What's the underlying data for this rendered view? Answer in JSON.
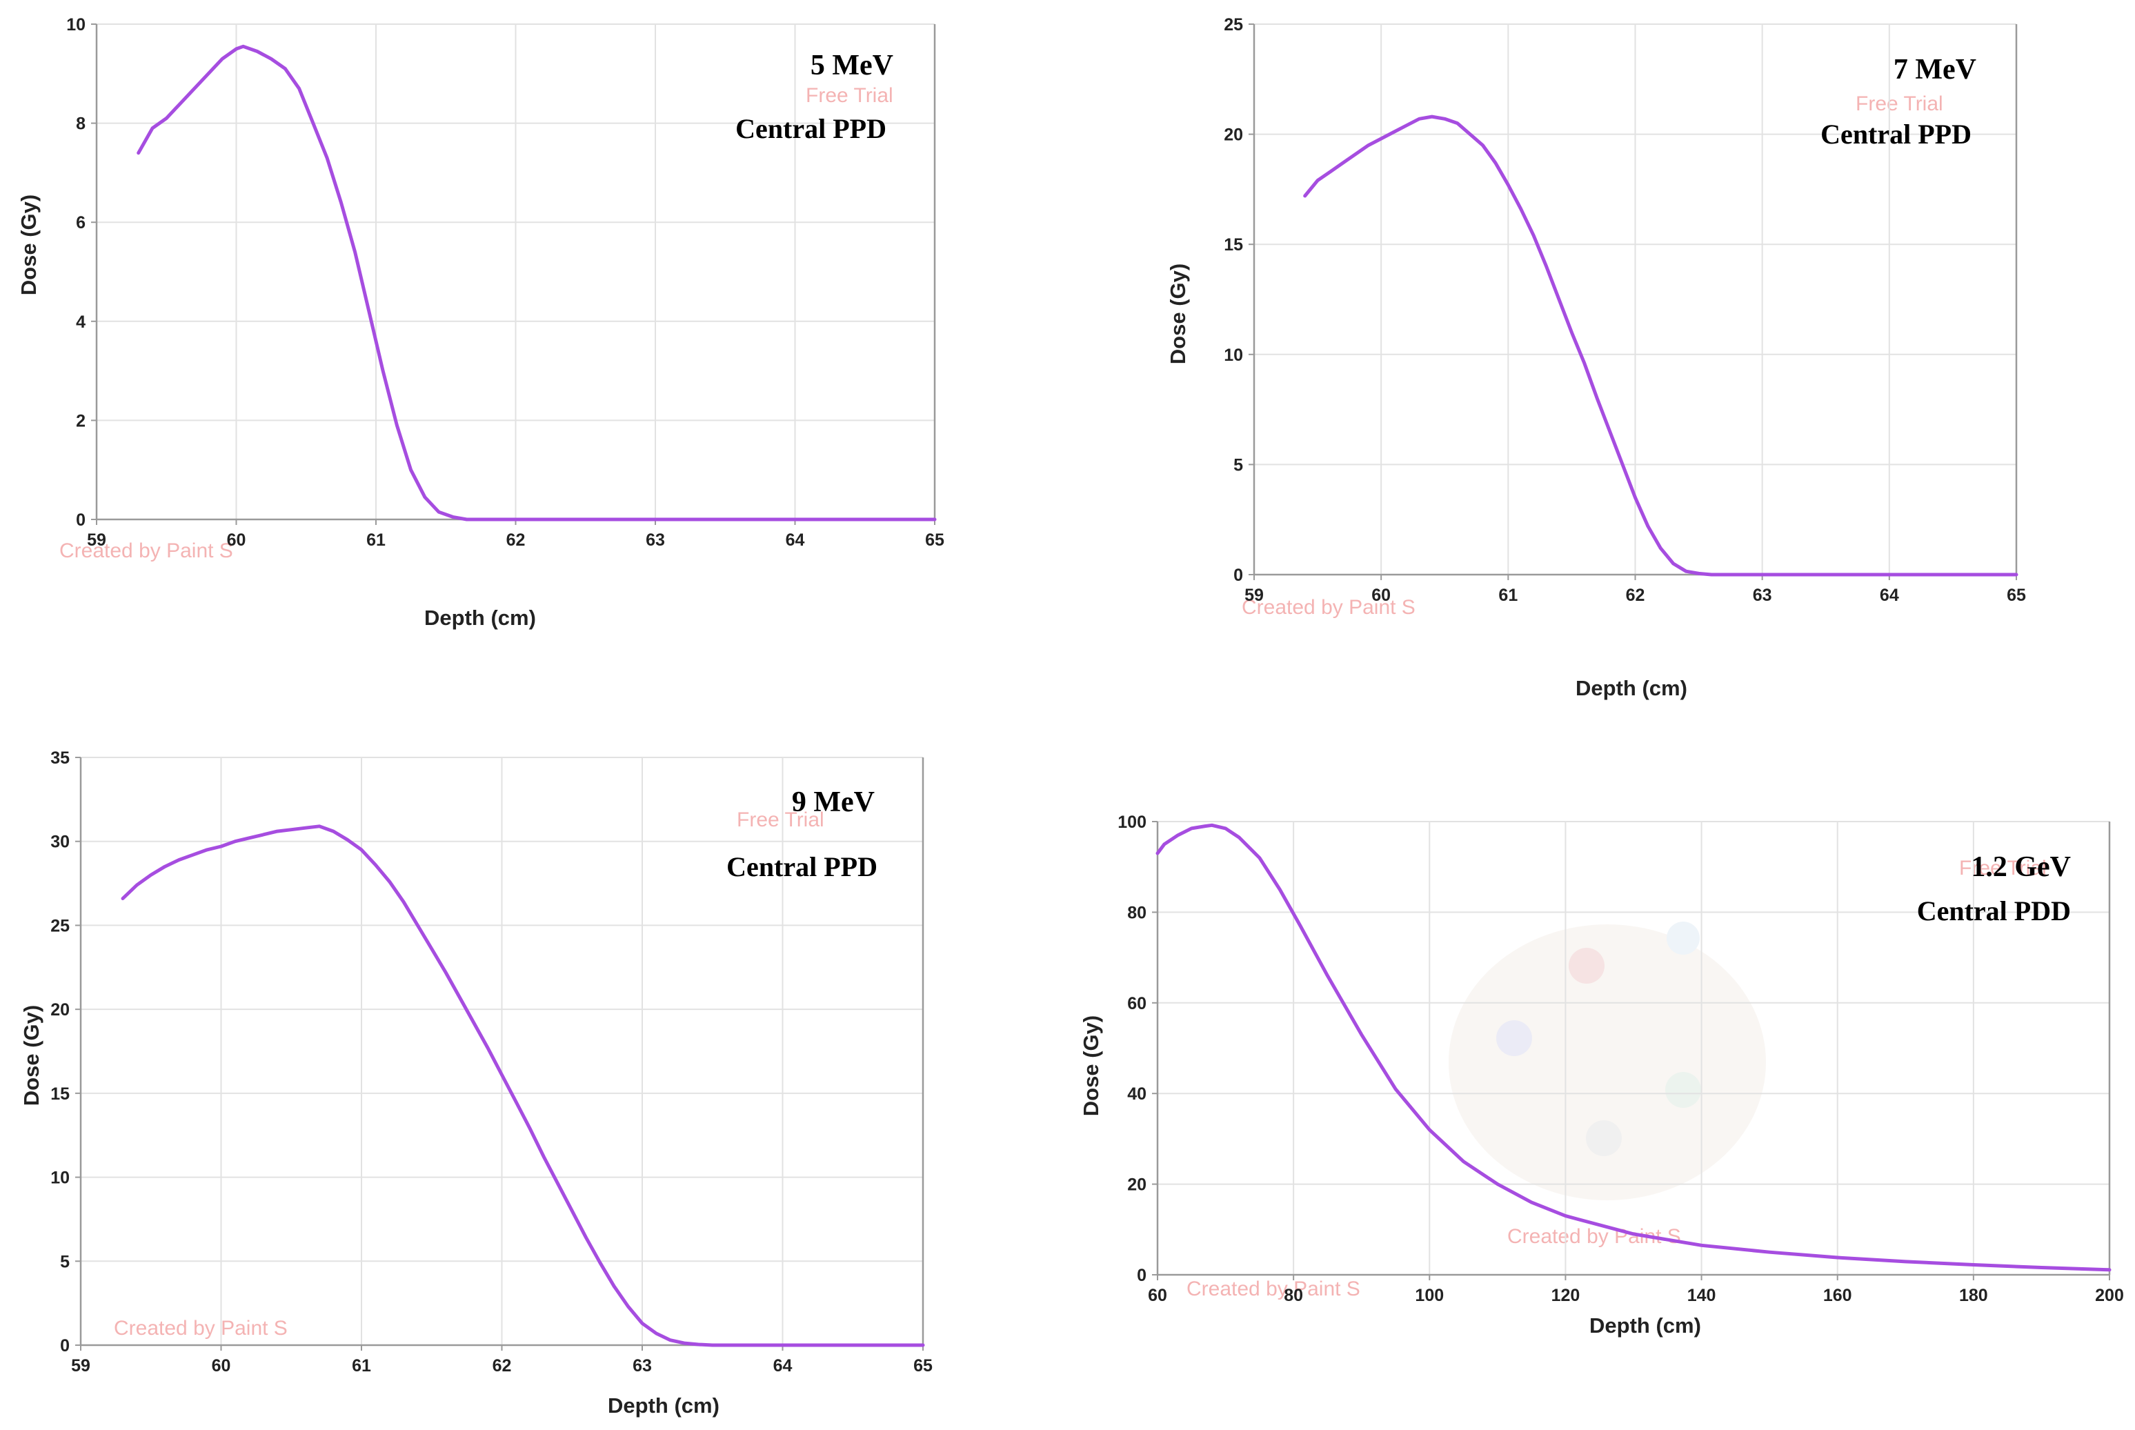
{
  "curve_color": "#a64de0",
  "watermarks": {
    "free_trial": "Free Trial",
    "created_by": "Created by Paint S",
    "created_by_short": "Created by Paint S"
  },
  "chart_data": [
    {
      "type": "line",
      "title": "5 MeV",
      "subtitle": "Central  PPD",
      "xlabel": "Depth (cm)",
      "ylabel": "Dose (Gy)",
      "xlim": [
        59,
        65
      ],
      "ylim": [
        0,
        10
      ],
      "xticks": [
        59,
        60,
        61,
        62,
        63,
        64,
        65
      ],
      "yticks": [
        0,
        2,
        4,
        6,
        8,
        10
      ],
      "x": [
        59.3,
        59.4,
        59.5,
        59.6,
        59.7,
        59.8,
        59.9,
        60.0,
        60.05,
        60.15,
        60.25,
        60.35,
        60.45,
        60.55,
        60.65,
        60.75,
        60.85,
        60.95,
        61.05,
        61.15,
        61.25,
        61.35,
        61.45,
        61.55,
        61.65,
        62.0,
        63.0,
        64.0,
        65.0
      ],
      "y": [
        7.4,
        7.9,
        8.1,
        8.4,
        8.7,
        9.0,
        9.3,
        9.5,
        9.55,
        9.45,
        9.3,
        9.1,
        8.7,
        8.0,
        7.3,
        6.4,
        5.4,
        4.2,
        3.0,
        1.9,
        1.0,
        0.45,
        0.15,
        0.05,
        0.0,
        0.0,
        0.0,
        0.0,
        0.0
      ]
    },
    {
      "type": "line",
      "title": "7 MeV",
      "subtitle": "Central  PPD",
      "xlabel": "Depth (cm)",
      "ylabel": "Dose (Gy)",
      "xlim": [
        59,
        65
      ],
      "ylim": [
        0,
        25
      ],
      "xticks": [
        59,
        60,
        61,
        62,
        63,
        64,
        65
      ],
      "yticks": [
        0,
        5,
        10,
        15,
        20,
        25
      ],
      "x": [
        59.4,
        59.5,
        59.6,
        59.7,
        59.8,
        59.9,
        60.0,
        60.1,
        60.2,
        60.3,
        60.4,
        60.5,
        60.6,
        60.7,
        60.8,
        60.9,
        61.0,
        61.1,
        61.2,
        61.3,
        61.4,
        61.5,
        61.6,
        61.7,
        61.8,
        61.9,
        62.0,
        62.1,
        62.2,
        62.3,
        62.4,
        62.5,
        62.6,
        63.0,
        64.0,
        65.0
      ],
      "y": [
        17.2,
        17.9,
        18.3,
        18.7,
        19.1,
        19.5,
        19.8,
        20.1,
        20.4,
        20.7,
        20.8,
        20.7,
        20.5,
        20.0,
        19.5,
        18.7,
        17.7,
        16.6,
        15.4,
        14.0,
        12.5,
        11.0,
        9.6,
        8.0,
        6.5,
        5.0,
        3.5,
        2.2,
        1.2,
        0.5,
        0.15,
        0.05,
        0.0,
        0.0,
        0.0,
        0.0
      ]
    },
    {
      "type": "line",
      "title": "9 MeV",
      "subtitle": "Central  PPD",
      "xlabel": "Depth (cm)",
      "ylabel": "Dose (Gy)",
      "xlim": [
        59,
        65
      ],
      "ylim": [
        0,
        35
      ],
      "xticks": [
        59,
        60,
        61,
        62,
        63,
        64,
        65
      ],
      "yticks": [
        0,
        5,
        10,
        15,
        20,
        25,
        30,
        35
      ],
      "x": [
        59.3,
        59.4,
        59.5,
        59.6,
        59.7,
        59.8,
        59.9,
        60.0,
        60.1,
        60.2,
        60.3,
        60.4,
        60.5,
        60.6,
        60.7,
        60.8,
        60.9,
        61.0,
        61.1,
        61.2,
        61.3,
        61.4,
        61.5,
        61.6,
        61.7,
        61.8,
        61.9,
        62.0,
        62.1,
        62.2,
        62.3,
        62.4,
        62.5,
        62.6,
        62.7,
        62.8,
        62.9,
        63.0,
        63.1,
        63.2,
        63.3,
        63.4,
        63.5,
        64.0,
        65.0
      ],
      "y": [
        26.6,
        27.4,
        28.0,
        28.5,
        28.9,
        29.2,
        29.5,
        29.7,
        30.0,
        30.2,
        30.4,
        30.6,
        30.7,
        30.8,
        30.9,
        30.6,
        30.1,
        29.5,
        28.6,
        27.6,
        26.4,
        25.0,
        23.6,
        22.2,
        20.7,
        19.2,
        17.7,
        16.1,
        14.5,
        12.9,
        11.2,
        9.6,
        8.0,
        6.4,
        4.9,
        3.5,
        2.3,
        1.3,
        0.7,
        0.3,
        0.12,
        0.04,
        0.0,
        0.0,
        0.0
      ]
    },
    {
      "type": "line",
      "title": "1.2 GeV",
      "subtitle": "Central PDD",
      "xlabel": "Depth (cm)",
      "ylabel": "Dose (Gy)",
      "xlim": [
        60,
        200
      ],
      "ylim": [
        0,
        100
      ],
      "xticks": [
        60,
        80,
        100,
        120,
        140,
        160,
        180,
        200
      ],
      "yticks": [
        0,
        20,
        40,
        60,
        80,
        100
      ],
      "x": [
        60,
        61,
        63,
        65,
        67,
        68,
        70,
        72,
        75,
        78,
        81,
        85,
        90,
        95,
        100,
        105,
        110,
        115,
        120,
        130,
        140,
        150,
        160,
        170,
        180,
        190,
        200
      ],
      "y": [
        93,
        95,
        97,
        98.5,
        99,
        99.2,
        98.5,
        96.5,
        92,
        85,
        77,
        66,
        53,
        41,
        32,
        25,
        20,
        16,
        13,
        9,
        6.5,
        5,
        3.8,
        2.9,
        2.2,
        1.6,
        1.1
      ]
    }
  ]
}
